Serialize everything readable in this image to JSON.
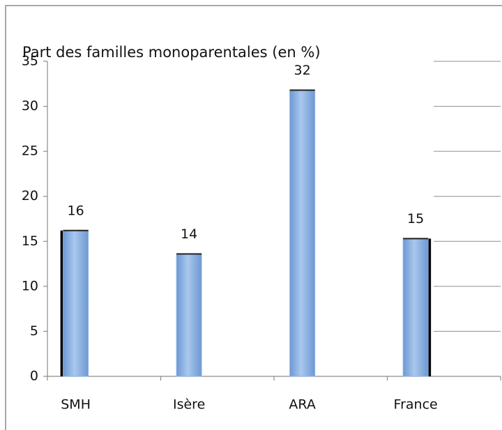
{
  "chart_data": {
    "type": "bar",
    "title": "Part des familles monoparentales (en %)",
    "categories": [
      "SMH",
      "Isère",
      "ARA",
      "France"
    ],
    "values": [
      16.2,
      13.6,
      31.8,
      15.3
    ],
    "value_labels": [
      "16",
      "14",
      "32",
      "15"
    ],
    "color": "#8fb4e3",
    "ylim": [
      0,
      35
    ],
    "yticks": [
      0,
      5,
      10,
      15,
      20,
      25,
      30,
      35
    ],
    "grid": true
  }
}
